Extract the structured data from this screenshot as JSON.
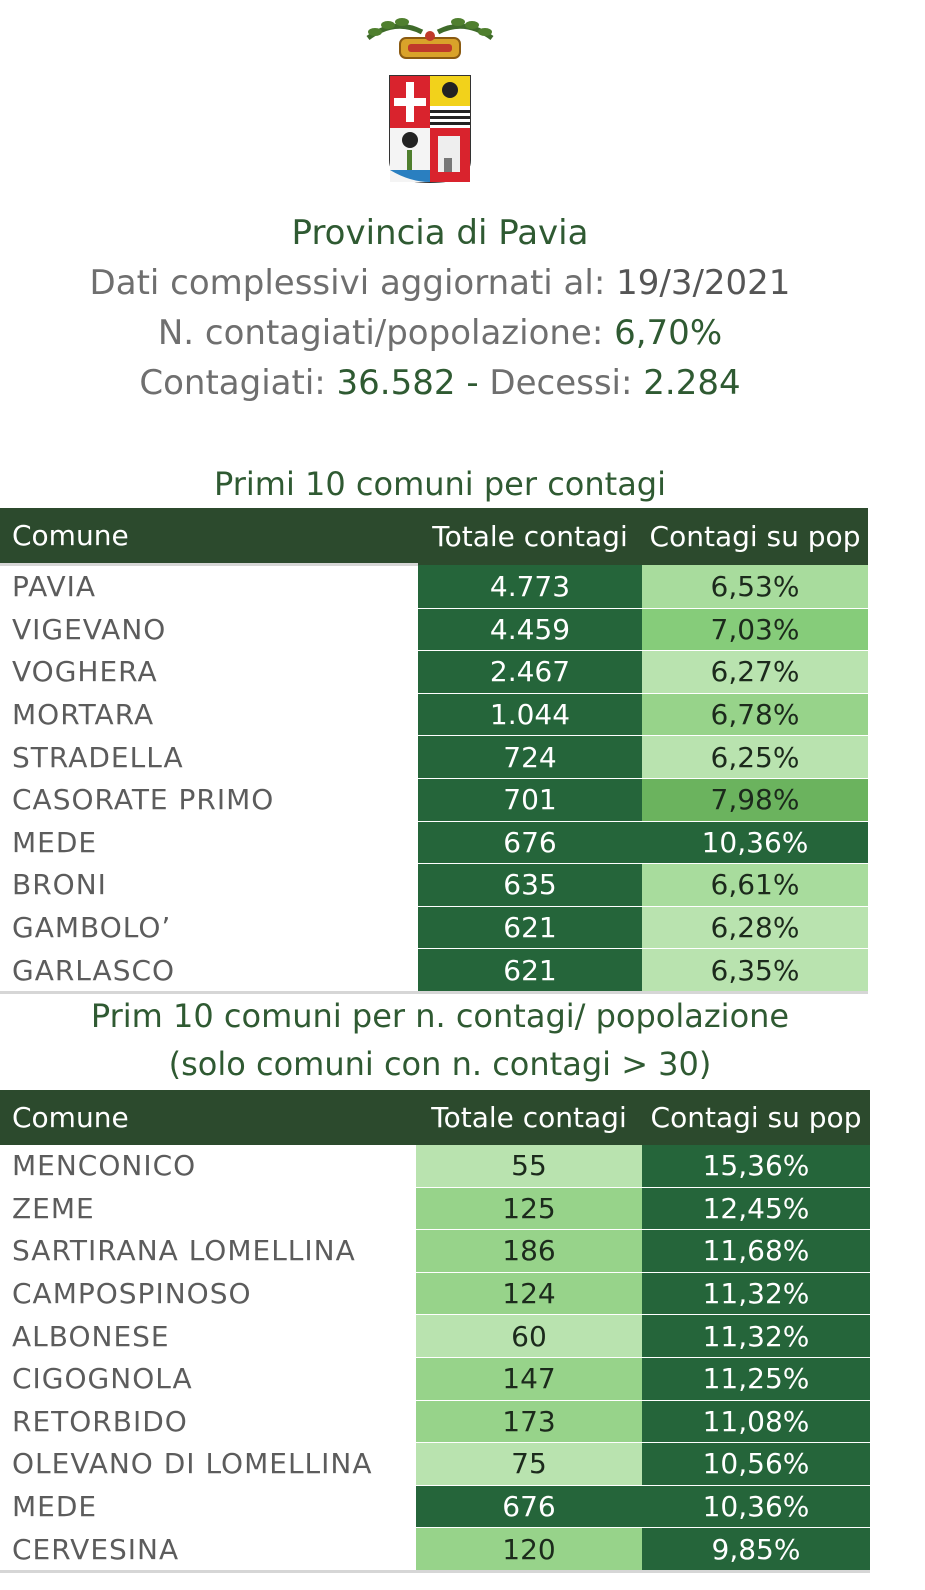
{
  "header": {
    "title": "Provincia di Pavia",
    "updated_label": "Dati complessivi aggiornati al:",
    "updated_date": "19/3/2021",
    "ratio_label": "N. contagiati/popolazione:",
    "ratio_value": "6,70%",
    "infected_label": "Contagiati:",
    "infected_value": "36.582",
    "separator": "-",
    "deaths_label": "Decessi:",
    "deaths_value": "2.284"
  },
  "table1": {
    "title": "Primi 10 comuni per contagi",
    "columns": [
      "Comune",
      "Totale contagi",
      "Contagi su pop"
    ],
    "rows": [
      {
        "comune": "PAVIA",
        "totale": "4.773",
        "pop": "6,53%",
        "shade_total": "dark",
        "shade_pop": "g2"
      },
      {
        "comune": "VIGEVANO",
        "totale": "4.459",
        "pop": "7,03%",
        "shade_total": "dark",
        "shade_pop": "g4"
      },
      {
        "comune": "VOGHERA",
        "totale": "2.467",
        "pop": "6,27%",
        "shade_total": "dark",
        "shade_pop": "g1"
      },
      {
        "comune": "MORTARA",
        "totale": "1.044",
        "pop": "6,78%",
        "shade_total": "dark",
        "shade_pop": "g3"
      },
      {
        "comune": "STRADELLA",
        "totale": "724",
        "pop": "6,25%",
        "shade_total": "dark",
        "shade_pop": "g1"
      },
      {
        "comune": "CASORATE PRIMO",
        "totale": "701",
        "pop": "7,98%",
        "shade_total": "dark",
        "shade_pop": "g5"
      },
      {
        "comune": "MEDE",
        "totale": "676",
        "pop": "10,36%",
        "shade_total": "dark",
        "shade_pop": "dark"
      },
      {
        "comune": "BRONI",
        "totale": "635",
        "pop": "6,61%",
        "shade_total": "dark",
        "shade_pop": "g2"
      },
      {
        "comune": "GAMBOLO’",
        "totale": "621",
        "pop": "6,28%",
        "shade_total": "dark",
        "shade_pop": "g1"
      },
      {
        "comune": "GARLASCO",
        "totale": "621",
        "pop": "6,35%",
        "shade_total": "dark",
        "shade_pop": "g1"
      }
    ]
  },
  "table2": {
    "title_line1": "Prim 10 comuni per n. contagi/ popolazione",
    "title_line2": "(solo comuni con n. contagi > 30)",
    "columns": [
      "Comune",
      "Totale contagi",
      "Contagi su pop"
    ],
    "rows": [
      {
        "comune": "MENCONICO",
        "totale": "55",
        "pop": "15,36%",
        "shade_total": "g1",
        "shade_pop": "dark"
      },
      {
        "comune": "ZEME",
        "totale": "125",
        "pop": "12,45%",
        "shade_total": "g3",
        "shade_pop": "dark"
      },
      {
        "comune": "SARTIRANA LOMELLINA",
        "totale": "186",
        "pop": "11,68%",
        "shade_total": "g3",
        "shade_pop": "dark"
      },
      {
        "comune": "CAMPOSPINOSO",
        "totale": "124",
        "pop": "11,32%",
        "shade_total": "g3",
        "shade_pop": "dark"
      },
      {
        "comune": "ALBONESE",
        "totale": "60",
        "pop": "11,32%",
        "shade_total": "g1",
        "shade_pop": "dark"
      },
      {
        "comune": "CIGOGNOLA",
        "totale": "147",
        "pop": "11,25%",
        "shade_total": "g3",
        "shade_pop": "dark"
      },
      {
        "comune": "RETORBIDO",
        "totale": "173",
        "pop": "11,08%",
        "shade_total": "g3",
        "shade_pop": "dark"
      },
      {
        "comune": "OLEVANO DI LOMELLINA",
        "totale": "75",
        "pop": "10,56%",
        "shade_total": "g1",
        "shade_pop": "dark"
      },
      {
        "comune": "MEDE",
        "totale": "676",
        "pop": "10,36%",
        "shade_total": "dark",
        "shade_pop": "dark"
      },
      {
        "comune": "CERVESINA",
        "totale": "120",
        "pop": "9,85%",
        "shade_total": "g3",
        "shade_pop": "dark"
      }
    ]
  },
  "colors": {
    "title_green": "#2f5a32",
    "header_bg": "#2c4a2d",
    "dark_cell": "#25653a"
  },
  "icons": {
    "crest": "provincia-di-pavia-coat-of-arms"
  }
}
